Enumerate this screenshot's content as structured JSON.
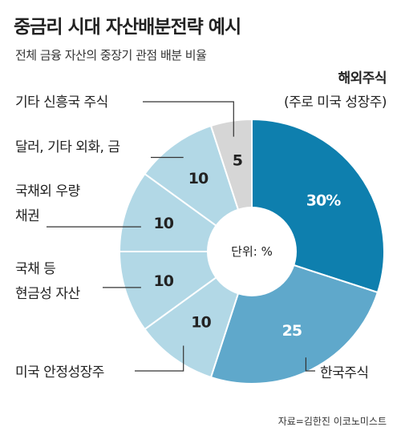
{
  "header": {
    "title": "중금리 시대 자산배분전략 예시",
    "subtitle": "전체 금융 자산의 중장기 관점 배분 비율"
  },
  "center_label": "단위: %",
  "source": "자료=김한진 이코노미스트",
  "colors": {
    "overseas": "#0e7fae",
    "korea": "#5fa8cb",
    "light": "#b2d8e6",
    "emerging": "#d6d6d6",
    "line": "#333333"
  },
  "chart_data": {
    "type": "pie",
    "title": "중금리 시대 자산배분전략 예시",
    "subtitle": "전체 금융 자산의 중장기 관점 배분 비율",
    "unit": "단위: %",
    "slices": [
      {
        "label": "해외주식",
        "sublabel": "(주로 미국 성장주)",
        "value": 30,
        "value_label": "30%",
        "color": "#0e7fae"
      },
      {
        "label": "한국주식",
        "value": 25,
        "value_label": "25",
        "color": "#5fa8cb"
      },
      {
        "label": "미국 안정성장주",
        "value": 10,
        "value_label": "10",
        "color": "#b2d8e6"
      },
      {
        "label": "국채 등 현금성 자산",
        "label_lines": [
          "국채 등",
          "현금성 자산"
        ],
        "value": 10,
        "value_label": "10",
        "color": "#b2d8e6"
      },
      {
        "label": "국채외 우량 채권",
        "label_lines": [
          "국채외 우량",
          "채권"
        ],
        "value": 10,
        "value_label": "10",
        "color": "#b2d8e6"
      },
      {
        "label": "달러, 기타 외화, 금",
        "value": 10,
        "value_label": "10",
        "color": "#b2d8e6"
      },
      {
        "label": "기타 신흥국 주식",
        "value": 5,
        "value_label": "5",
        "color": "#d6d6d6"
      }
    ]
  }
}
